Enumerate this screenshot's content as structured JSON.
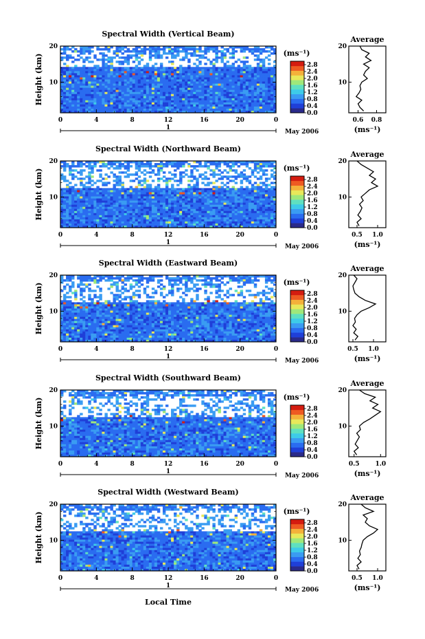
{
  "figure": {
    "xlabel": "Local Time",
    "date_label": "May 2006",
    "day_label": "1",
    "height_label": "Height (km)",
    "unit_label": "(ms⁻¹)",
    "average_title": "Average",
    "average_xlabel": "(ms⁻¹)"
  },
  "colors": {
    "scale": [
      "#2a2a8a",
      "#1f3fd8",
      "#2a6cf0",
      "#3a9cf2",
      "#3ecbe8",
      "#5fe0c0",
      "#9fe87a",
      "#e8e85a",
      "#f4b13a",
      "#ee5a22",
      "#d41c10"
    ]
  },
  "chart_data": [
    {
      "type": "heatmap",
      "title": "Spectral Width (Vertical Beam)",
      "ylabel": "Height (km)",
      "x_ticks": [
        "0",
        "4",
        "8",
        "12",
        "16",
        "20",
        "0"
      ],
      "x_range": [
        0,
        24
      ],
      "y_range": [
        1.5,
        20
      ],
      "y_ticks": [
        "20",
        "10"
      ],
      "colorbar": {
        "ticks": [
          "2.8",
          "2.4",
          "2.0",
          "1.6",
          "1.2",
          "0.8",
          "0.4",
          "0.0"
        ],
        "range": [
          0.0,
          3.0
        ]
      },
      "average_profile": {
        "title": "Average",
        "x_ticks": [
          "0.6",
          "0.8"
        ],
        "x_range": [
          0.5,
          0.9
        ],
        "heights": [
          2,
          3,
          4,
          5,
          6,
          7,
          8,
          9,
          10,
          11,
          12,
          13,
          14,
          15,
          16,
          17,
          18,
          19,
          20
        ],
        "values": [
          0.66,
          0.62,
          0.6,
          0.64,
          0.58,
          0.61,
          0.63,
          0.62,
          0.64,
          0.7,
          0.66,
          0.68,
          0.72,
          0.66,
          0.74,
          0.68,
          0.72,
          0.64,
          0.62
        ]
      }
    },
    {
      "type": "heatmap",
      "title": "Spectral Width (Northward Beam)",
      "ylabel": "Height (km)",
      "x_ticks": [
        "0",
        "4",
        "8",
        "12",
        "16",
        "20",
        "0"
      ],
      "x_range": [
        0,
        24
      ],
      "y_range": [
        1.5,
        20
      ],
      "y_ticks": [
        "20",
        "10"
      ],
      "colorbar": {
        "ticks": [
          "2.8",
          "2.4",
          "2.0",
          "1.6",
          "1.2",
          "0.8",
          "0.4",
          "0.0"
        ],
        "range": [
          0.0,
          3.0
        ]
      },
      "average_profile": {
        "title": "Average",
        "x_ticks": [
          "0.5",
          "1.0"
        ],
        "x_range": [
          0.3,
          1.2
        ],
        "heights": [
          2,
          3,
          4,
          5,
          6,
          7,
          8,
          9,
          10,
          11,
          12,
          13,
          14,
          15,
          16,
          17,
          18,
          19,
          20
        ],
        "values": [
          0.55,
          0.5,
          0.6,
          0.52,
          0.58,
          0.62,
          0.56,
          0.65,
          0.6,
          0.7,
          0.8,
          1.0,
          0.85,
          0.95,
          0.8,
          0.9,
          0.75,
          0.6,
          0.5
        ]
      }
    },
    {
      "type": "heatmap",
      "title": "Spectral Width (Eastward Beam)",
      "ylabel": "Height (km)",
      "x_ticks": [
        "0",
        "4",
        "8",
        "12",
        "16",
        "20",
        "0"
      ],
      "x_range": [
        0,
        24
      ],
      "y_range": [
        1.5,
        20
      ],
      "y_ticks": [
        "20",
        "10"
      ],
      "colorbar": {
        "ticks": [
          "2.8",
          "2.4",
          "2.0",
          "1.6",
          "1.2",
          "0.8",
          "0.4",
          "0.0"
        ],
        "range": [
          0.0,
          3.0
        ]
      },
      "average_profile": {
        "title": "Average",
        "x_ticks": [
          "0.5",
          "1.0"
        ],
        "x_range": [
          0.4,
          1.3
        ],
        "heights": [
          2,
          3,
          4,
          5,
          6,
          7,
          8,
          9,
          10,
          11,
          12,
          13,
          14,
          15,
          16,
          17,
          18,
          19,
          20
        ],
        "values": [
          0.55,
          0.62,
          0.52,
          0.58,
          0.5,
          0.56,
          0.54,
          0.6,
          0.7,
          0.9,
          1.05,
          0.8,
          0.65,
          0.55,
          0.52,
          0.5,
          0.55,
          0.6,
          0.52
        ]
      }
    },
    {
      "type": "heatmap",
      "title": "Spectral Width (Southward Beam)",
      "ylabel": "Height (km)",
      "x_ticks": [
        "0",
        "4",
        "8",
        "12",
        "16",
        "20",
        "0"
      ],
      "x_range": [
        0,
        24
      ],
      "y_range": [
        1.5,
        20
      ],
      "y_ticks": [
        "20",
        "10"
      ],
      "colorbar": {
        "ticks": [
          "2.8",
          "2.4",
          "2.0",
          "1.6",
          "1.2",
          "0.8",
          "0.4",
          "0.0"
        ],
        "range": [
          0.0,
          3.0
        ]
      },
      "average_profile": {
        "title": "Average",
        "x_ticks": [
          "0.5",
          "1.0"
        ],
        "x_range": [
          0.4,
          1.1
        ],
        "heights": [
          2,
          3,
          4,
          5,
          6,
          7,
          8,
          9,
          10,
          11,
          12,
          13,
          14,
          15,
          16,
          17,
          18,
          19,
          20
        ],
        "values": [
          0.55,
          0.5,
          0.58,
          0.52,
          0.56,
          0.6,
          0.55,
          0.62,
          0.6,
          0.68,
          0.8,
          0.9,
          1.0,
          0.85,
          0.95,
          0.8,
          0.9,
          0.7,
          0.6
        ]
      }
    },
    {
      "type": "heatmap",
      "title": "Spectral Width (Westward Beam)",
      "ylabel": "Height (km)",
      "x_ticks": [
        "0",
        "4",
        "8",
        "12",
        "16",
        "20",
        "0"
      ],
      "x_range": [
        0,
        24
      ],
      "y_range": [
        1.5,
        20
      ],
      "y_ticks": [
        "20",
        "10"
      ],
      "colorbar": {
        "ticks": [
          "2.8",
          "2.4",
          "2.0",
          "1.6",
          "1.2",
          "0.8",
          "0.4",
          "0.0"
        ],
        "range": [
          0.0,
          3.0
        ]
      },
      "average_profile": {
        "title": "Average",
        "x_ticks": [
          "0.5",
          "1.0"
        ],
        "x_range": [
          0.3,
          1.2
        ],
        "heights": [
          2,
          3,
          4,
          5,
          6,
          7,
          8,
          9,
          10,
          11,
          12,
          13,
          14,
          15,
          16,
          17,
          18,
          19,
          20
        ],
        "values": [
          0.55,
          0.5,
          0.6,
          0.52,
          0.58,
          0.56,
          0.6,
          0.62,
          0.65,
          0.75,
          0.9,
          1.0,
          0.8,
          0.7,
          0.75,
          0.65,
          0.9,
          0.7,
          0.6
        ]
      }
    }
  ]
}
